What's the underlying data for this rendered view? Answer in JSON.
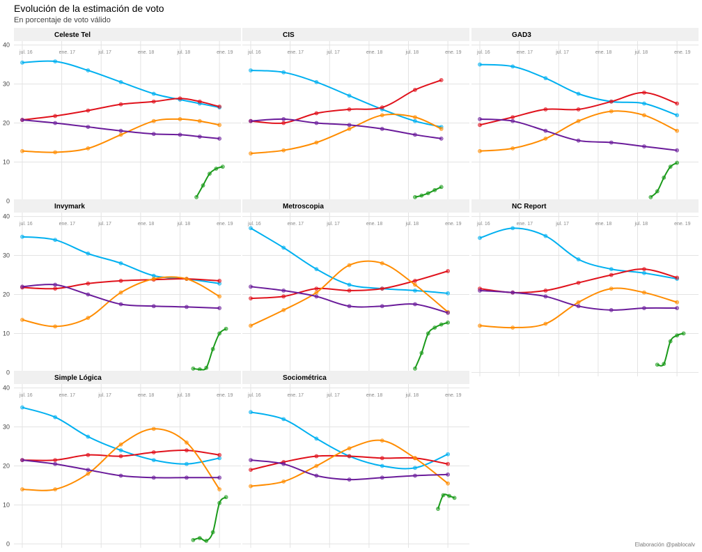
{
  "title": "Evolución de la estimación de voto",
  "subtitle": "En porcentaje de voto válido",
  "caption": "Elaboración @pablocalv",
  "chart_data": {
    "type": "line",
    "y_ticks": [
      0,
      10,
      20,
      30,
      40
    ],
    "ylim": [
      -1,
      41
    ],
    "xlim": [
      0,
      32
    ],
    "x_tick_labels": [
      "jul. 16",
      "ene. 17",
      "jul. 17",
      "ene. 18",
      "jul. 18",
      "ene. 19"
    ],
    "x_tick_positions": [
      0,
      6,
      12,
      18,
      24,
      30
    ],
    "x_unit": "months since jul. 16",
    "grid": true,
    "series_colors": [
      "#00b0f0",
      "#e0111b",
      "#ff8c00",
      "#6a1b9a",
      "#1a9a1a"
    ],
    "panels": [
      {
        "name": "Celeste Tel",
        "series": [
          {
            "x": [
              0,
              5,
              10,
              15,
              20,
              24,
              27,
              30
            ],
            "values": [
              35.5,
              35.8,
              33.5,
              30.5,
              27.5,
              26.0,
              25.0,
              24.0
            ]
          },
          {
            "x": [
              0,
              5,
              10,
              15,
              20,
              24,
              27,
              30
            ],
            "values": [
              20.8,
              21.8,
              23.2,
              24.8,
              25.5,
              26.3,
              25.5,
              24.2
            ]
          },
          {
            "x": [
              0,
              5,
              10,
              15,
              20,
              24,
              27,
              30
            ],
            "values": [
              12.8,
              12.5,
              13.5,
              17.0,
              20.5,
              21.0,
              20.5,
              19.5
            ]
          },
          {
            "x": [
              0,
              5,
              10,
              15,
              20,
              24,
              27,
              30
            ],
            "values": [
              20.8,
              20.0,
              19.0,
              18.0,
              17.2,
              17.0,
              16.5,
              16.0
            ]
          },
          {
            "x": [
              26.5,
              27.5,
              28.5,
              29.5,
              30.5
            ],
            "values": [
              1.0,
              4.0,
              7.0,
              8.3,
              8.8
            ]
          }
        ]
      },
      {
        "name": "CIS",
        "series": [
          {
            "x": [
              0,
              5,
              10,
              15,
              20,
              25,
              29
            ],
            "values": [
              33.5,
              33.0,
              30.5,
              27.0,
              23.5,
              20.5,
              19.0
            ]
          },
          {
            "x": [
              0,
              5,
              10,
              15,
              20,
              25,
              29
            ],
            "values": [
              20.5,
              20.0,
              22.5,
              23.5,
              24.0,
              28.5,
              31.0
            ]
          },
          {
            "x": [
              0,
              5,
              10,
              15,
              20,
              25,
              29
            ],
            "values": [
              12.2,
              13.0,
              15.0,
              18.5,
              22.0,
              21.5,
              18.5
            ]
          },
          {
            "x": [
              0,
              5,
              10,
              15,
              20,
              25,
              29
            ],
            "values": [
              20.5,
              21.0,
              20.0,
              19.5,
              18.5,
              17.0,
              16.0
            ]
          },
          {
            "x": [
              25,
              26,
              27,
              28,
              29
            ],
            "values": [
              1.0,
              1.4,
              2.0,
              2.8,
              3.6
            ]
          }
        ]
      },
      {
        "name": "GAD3",
        "series": [
          {
            "x": [
              0,
              5,
              10,
              15,
              20,
              25,
              30
            ],
            "values": [
              35.0,
              34.5,
              31.5,
              27.5,
              25.5,
              25.0,
              22.0
            ]
          },
          {
            "x": [
              0,
              5,
              10,
              15,
              20,
              25,
              30
            ],
            "values": [
              19.5,
              21.5,
              23.5,
              23.5,
              25.5,
              27.8,
              25.0
            ]
          },
          {
            "x": [
              0,
              5,
              10,
              15,
              20,
              25,
              30
            ],
            "values": [
              12.8,
              13.5,
              16.0,
              20.5,
              23.0,
              22.0,
              18.0
            ]
          },
          {
            "x": [
              0,
              5,
              10,
              15,
              20,
              25,
              30
            ],
            "values": [
              21.0,
              20.5,
              18.0,
              15.5,
              15.0,
              14.0,
              13.0
            ]
          },
          {
            "x": [
              26,
              27,
              28,
              29,
              30
            ],
            "values": [
              1.0,
              2.5,
              6.0,
              8.8,
              9.8
            ]
          }
        ]
      },
      {
        "name": "Invymark",
        "series": [
          {
            "x": [
              0,
              5,
              10,
              15,
              20,
              25,
              30
            ],
            "values": [
              34.8,
              34.0,
              30.5,
              28.0,
              24.8,
              24.0,
              22.8
            ]
          },
          {
            "x": [
              0,
              5,
              10,
              15,
              20,
              25,
              30
            ],
            "values": [
              21.8,
              21.5,
              22.8,
              23.5,
              23.8,
              24.0,
              23.5
            ]
          },
          {
            "x": [
              0,
              5,
              10,
              15,
              20,
              25,
              30
            ],
            "values": [
              13.5,
              11.8,
              14.0,
              20.5,
              24.0,
              24.0,
              19.5
            ]
          },
          {
            "x": [
              0,
              5,
              10,
              15,
              20,
              25,
              30
            ],
            "values": [
              22.0,
              22.5,
              20.0,
              17.5,
              17.0,
              16.8,
              16.5
            ]
          },
          {
            "x": [
              26,
              27,
              28,
              29,
              30,
              31
            ],
            "values": [
              1.0,
              0.8,
              1.2,
              6.0,
              10.0,
              11.2
            ]
          }
        ]
      },
      {
        "name": "Metroscopia",
        "series": [
          {
            "x": [
              0,
              5,
              10,
              15,
              20,
              25,
              30
            ],
            "values": [
              37.0,
              32.0,
              26.5,
              22.5,
              21.5,
              21.0,
              20.3
            ]
          },
          {
            "x": [
              0,
              5,
              10,
              15,
              20,
              25,
              30
            ],
            "values": [
              19.0,
              19.5,
              21.5,
              21.0,
              21.5,
              23.5,
              26.0
            ]
          },
          {
            "x": [
              0,
              5,
              10,
              15,
              20,
              25,
              30
            ],
            "values": [
              12.0,
              16.0,
              20.5,
              27.5,
              28.0,
              22.5,
              15.5
            ]
          },
          {
            "x": [
              0,
              5,
              10,
              15,
              20,
              25,
              30
            ],
            "values": [
              22.0,
              21.0,
              19.5,
              17.0,
              17.0,
              17.5,
              15.3
            ]
          },
          {
            "x": [
              25,
              26,
              27,
              28,
              29,
              30
            ],
            "values": [
              1.0,
              5.0,
              10.0,
              11.5,
              12.3,
              12.8
            ]
          }
        ]
      },
      {
        "name": "NC Report",
        "series": [
          {
            "x": [
              0,
              5,
              10,
              15,
              20,
              25,
              30
            ],
            "values": [
              34.5,
              37.0,
              35.0,
              29.0,
              26.5,
              25.5,
              24.0
            ]
          },
          {
            "x": [
              0,
              5,
              10,
              15,
              20,
              25,
              30
            ],
            "values": [
              21.5,
              20.5,
              21.0,
              23.0,
              25.0,
              26.5,
              24.3
            ]
          },
          {
            "x": [
              0,
              5,
              10,
              15,
              20,
              25,
              30
            ],
            "values": [
              12.0,
              11.5,
              12.5,
              18.0,
              21.5,
              20.5,
              18.0
            ]
          },
          {
            "x": [
              0,
              5,
              10,
              15,
              20,
              25,
              30
            ],
            "values": [
              21.0,
              20.5,
              19.5,
              17.0,
              16.0,
              16.5,
              16.5
            ]
          },
          {
            "x": [
              27,
              28,
              29,
              30,
              31
            ],
            "values": [
              2.0,
              2.2,
              8.0,
              9.5,
              10.0
            ]
          }
        ]
      },
      {
        "name": "Simple Lógica",
        "series": [
          {
            "x": [
              0,
              5,
              10,
              15,
              20,
              25,
              30
            ],
            "values": [
              35.0,
              32.5,
              27.5,
              24.0,
              21.5,
              20.5,
              22.0
            ]
          },
          {
            "x": [
              0,
              5,
              10,
              15,
              20,
              25,
              30
            ],
            "values": [
              21.5,
              21.5,
              22.8,
              22.5,
              23.5,
              24.0,
              22.8
            ]
          },
          {
            "x": [
              0,
              5,
              10,
              15,
              20,
              25,
              30
            ],
            "values": [
              14.0,
              14.0,
              18.0,
              25.5,
              29.5,
              26.0,
              14.0
            ]
          },
          {
            "x": [
              0,
              5,
              10,
              15,
              20,
              25,
              30
            ],
            "values": [
              21.5,
              20.5,
              19.0,
              17.5,
              17.0,
              17.0,
              17.0
            ]
          },
          {
            "x": [
              26,
              27,
              28,
              29,
              30,
              31
            ],
            "values": [
              1.0,
              1.5,
              0.8,
              3.0,
              10.5,
              12.0
            ]
          }
        ]
      },
      {
        "name": "Sociométrica",
        "series": [
          {
            "x": [
              0,
              5,
              10,
              15,
              20,
              25,
              30
            ],
            "values": [
              33.8,
              32.0,
              27.0,
              22.5,
              20.0,
              19.5,
              23.0
            ]
          },
          {
            "x": [
              0,
              5,
              10,
              15,
              20,
              25,
              30
            ],
            "values": [
              19.0,
              21.0,
              22.5,
              22.5,
              22.0,
              22.0,
              20.5
            ]
          },
          {
            "x": [
              0,
              5,
              10,
              15,
              20,
              25,
              30
            ],
            "values": [
              14.8,
              16.0,
              20.0,
              24.5,
              26.5,
              22.0,
              15.5
            ]
          },
          {
            "x": [
              0,
              5,
              10,
              15,
              20,
              25,
              30
            ],
            "values": [
              21.5,
              20.5,
              17.5,
              16.5,
              17.0,
              17.5,
              17.8
            ]
          },
          {
            "x": [
              28.5,
              29.3,
              30.2,
              31
            ],
            "values": [
              9.0,
              12.5,
              12.3,
              11.8
            ]
          }
        ]
      }
    ]
  }
}
